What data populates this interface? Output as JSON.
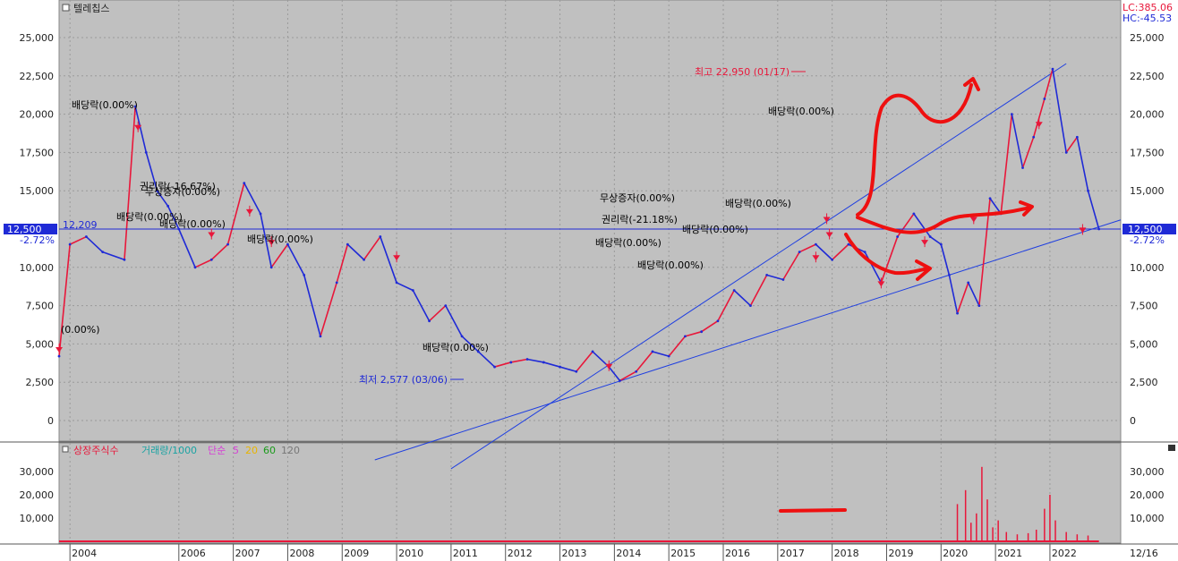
{
  "header": {
    "title": "텔레칩스",
    "lc_label": "LC:385.06",
    "hc_label": "HC:-45.53"
  },
  "price_panel": {
    "y_ticks": [
      "25,000",
      "22,500",
      "20,000",
      "17,500",
      "15,000",
      "12,500",
      "10,000",
      "7,500",
      "5,000",
      "2,500",
      "0"
    ],
    "current_price_label": "12,500",
    "current_change_label": "-2.72%",
    "left_price_label": "12,209",
    "high_label": "최고 22,950 (01/17)",
    "low_label": "최저 2,577 (03/06)"
  },
  "annotations": [
    {
      "text": "배당락(0.00%)",
      "color": "#333333"
    },
    {
      "text": "(0.00%)",
      "color": "#333333"
    },
    {
      "text": "권리락(-16.67%)",
      "color": "#333333"
    },
    {
      "text": "무상증자(0.00%)",
      "color": "#333333"
    },
    {
      "text": "배당락(0.00%)",
      "color": "#333333"
    },
    {
      "text": "배당락(0.00%)",
      "color": "#333333"
    },
    {
      "text": "배당락(0.00%)",
      "color": "#333333"
    },
    {
      "text": "배당락(0.00%)",
      "color": "#333333"
    },
    {
      "text": "무상증자(0.00%)",
      "color": "#333333"
    },
    {
      "text": "권리락(-21.18%)",
      "color": "#333333"
    },
    {
      "text": "배당락(0.00%)",
      "color": "#333333"
    },
    {
      "text": "배당락(0.00%)",
      "color": "#333333"
    },
    {
      "text": "배당락(0.00%)",
      "color": "#333333"
    },
    {
      "text": "배당락(0.00%)",
      "color": "#333333"
    },
    {
      "text": "배당락(0.00%)",
      "color": "#333333"
    }
  ],
  "volume_panel": {
    "legend": [
      {
        "text": "상장주식수",
        "color": "#e8173a"
      },
      {
        "text": "거래량/1000",
        "color": "#1aa3a3"
      },
      {
        "text": "단순",
        "color": "#d63fd6"
      },
      {
        "text": "5",
        "color": "#d63fd6"
      },
      {
        "text": "20",
        "color": "#e8b400"
      },
      {
        "text": "60",
        "color": "#1a9a1a"
      },
      {
        "text": "120",
        "color": "#777777"
      }
    ],
    "y_ticks": [
      "30,000",
      "20,000",
      "10,000"
    ]
  },
  "x_axis": {
    "labels": [
      "2004",
      "2006",
      "2007",
      "2008",
      "2009",
      "2010",
      "2011",
      "2012",
      "2013",
      "2014",
      "2015",
      "2016",
      "2017",
      "2018",
      "2019",
      "2020",
      "2021",
      "2022"
    ],
    "right_date": "12/16"
  },
  "chart_data": {
    "type": "line",
    "title": "텔레칩스",
    "x": [
      2003.8,
      2004.0,
      2004.3,
      2004.6,
      2005.0,
      2005.2,
      2005.4,
      2005.6,
      2005.8,
      2006.0,
      2006.3,
      2006.6,
      2006.9,
      2007.2,
      2007.5,
      2007.7,
      2008.0,
      2008.3,
      2008.6,
      2008.9,
      2009.1,
      2009.4,
      2009.7,
      2010.0,
      2010.3,
      2010.6,
      2010.9,
      2011.2,
      2011.5,
      2011.8,
      2012.1,
      2012.4,
      2012.7,
      2013.0,
      2013.3,
      2013.6,
      2013.9,
      2014.1,
      2014.4,
      2014.7,
      2015.0,
      2015.3,
      2015.6,
      2015.9,
      2016.2,
      2016.5,
      2016.8,
      2017.1,
      2017.4,
      2017.7,
      2018.0,
      2018.3,
      2018.6,
      2018.9,
      2019.2,
      2019.5,
      2019.8,
      2020.0,
      2020.15,
      2020.3,
      2020.5,
      2020.7,
      2020.9,
      2021.1,
      2021.3,
      2021.5,
      2021.7,
      2021.9,
      2022.05,
      2022.3,
      2022.5,
      2022.7,
      2022.9
    ],
    "series": [
      {
        "values": [
          4200,
          11500,
          12000,
          11000,
          10500,
          20500,
          17500,
          15000,
          14000,
          12500,
          10000,
          10500,
          11500,
          15500,
          13500,
          10000,
          11500,
          9500,
          5500,
          9000,
          11500,
          10500,
          12000,
          9000,
          8500,
          6500,
          7500,
          5500,
          4500,
          3500,
          3800,
          4000,
          3800,
          3500,
          3200,
          4500,
          3500,
          2600,
          3200,
          4500,
          4200,
          5500,
          5800,
          6500,
          8500,
          7500,
          9500,
          9200,
          11000,
          11500,
          10500,
          11500,
          11000,
          9000,
          12000,
          13500,
          12000,
          11500,
          9500,
          7000,
          9000,
          7500,
          14500,
          13500,
          20000,
          16500,
          18500,
          21000,
          22950,
          17500,
          18500,
          15000,
          12500
        ]
      }
    ],
    "ylim": [
      0,
      25000
    ],
    "xlim": [
      2003.8,
      2023.3
    ],
    "reference_line": 12500,
    "high": {
      "x": 2022.05,
      "y": 22950
    },
    "low": {
      "x": 2014.1,
      "y": 2577
    },
    "dividend_markers": [
      {
        "x": 2003.8,
        "y": 4500
      },
      {
        "x": 2005.25,
        "y": 19000
      },
      {
        "x": 2006.6,
        "y": 12000
      },
      {
        "x": 2007.3,
        "y": 13500
      },
      {
        "x": 2007.7,
        "y": 11500
      },
      {
        "x": 2010.0,
        "y": 10500
      },
      {
        "x": 2013.9,
        "y": 3400
      },
      {
        "x": 2017.9,
        "y": 13000
      },
      {
        "x": 2017.7,
        "y": 10500
      },
      {
        "x": 2018.9,
        "y": 8800
      },
      {
        "x": 2019.7,
        "y": 11500
      },
      {
        "x": 2020.6,
        "y": 13000
      },
      {
        "x": 2021.8,
        "y": 19200
      },
      {
        "x": 2022.6,
        "y": 12300
      },
      {
        "x": 2017.95,
        "y": 12000
      }
    ],
    "volume": {
      "x": [
        2020.3,
        2020.45,
        2020.55,
        2020.65,
        2020.75,
        2020.85,
        2020.95,
        2021.05,
        2021.2,
        2021.4,
        2021.6,
        2021.75,
        2021.9,
        2022.0,
        2022.1,
        2022.3,
        2022.5,
        2022.7
      ],
      "values": [
        16000,
        22000,
        8000,
        12000,
        32000,
        18000,
        6000,
        9000,
        4000,
        3000,
        3500,
        5000,
        14000,
        20000,
        9000,
        4000,
        3000,
        2500
      ]
    },
    "volume_ylim": [
      0,
      35000
    ]
  },
  "colors": {
    "plot_bg": "#c0c0c0",
    "price_up": "#e8173a",
    "price_down": "#1f2ad6",
    "trend_line": "#1f3fe0",
    "annotation_drawing": "#ee1010"
  }
}
